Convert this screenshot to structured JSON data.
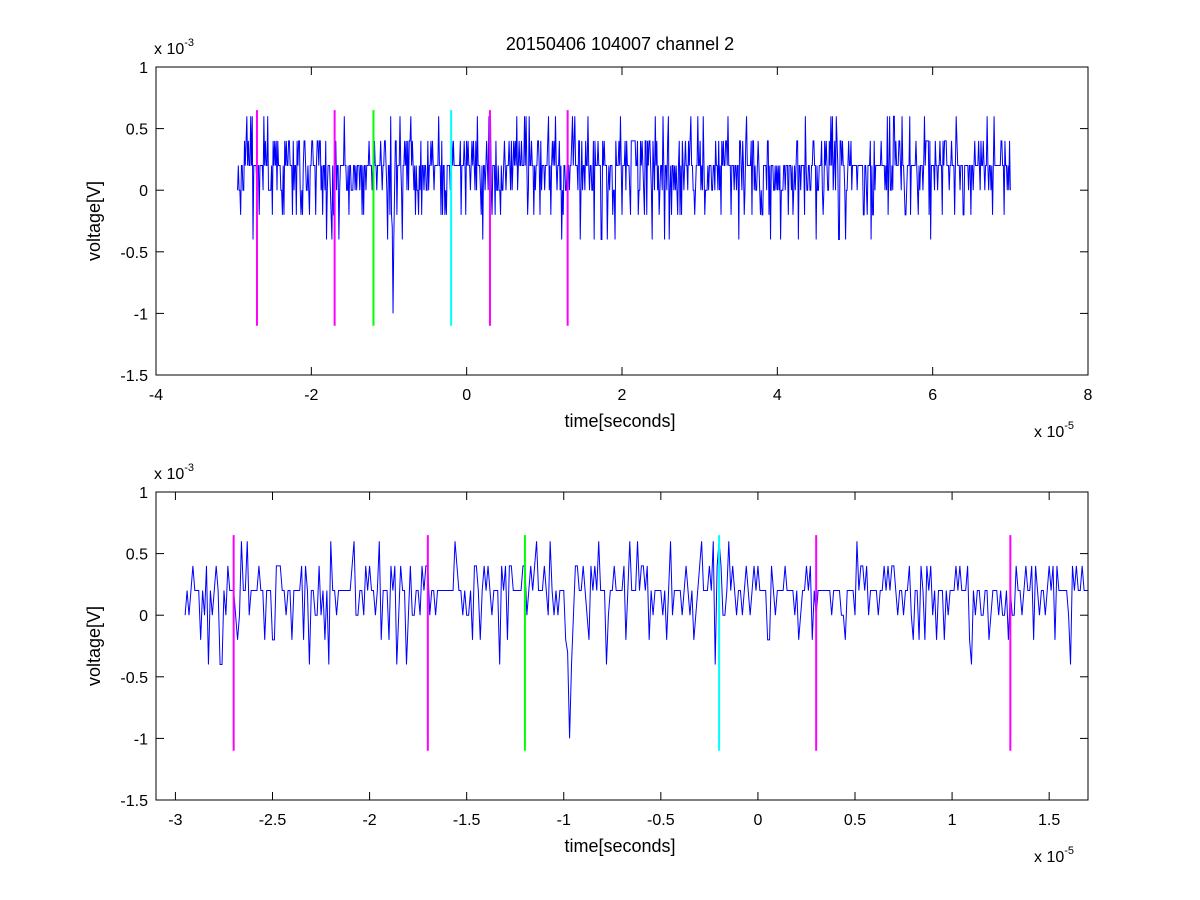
{
  "title": "20150406 104007 channel 2",
  "colors": {
    "signal": "#0000ff",
    "magenta": "#ff00ff",
    "green": "#00ff00",
    "cyan": "#00ffff",
    "axis": "#000000",
    "background": "#ffffff"
  },
  "chart_data": [
    {
      "type": "line",
      "xlabel": "time[seconds]",
      "ylabel": "voltage[V]",
      "x_multiplier_label": "x 10",
      "x_multiplier_exp": "-5",
      "y_multiplier_label": "x 10",
      "y_multiplier_exp": "-3",
      "xlim": [
        -4,
        8
      ],
      "ylim": [
        -1.5,
        1
      ],
      "xticks": [
        -4,
        -2,
        0,
        2,
        4,
        6,
        8
      ],
      "xtick_labels": [
        "-4",
        "-2",
        "0",
        "2",
        "4",
        "6",
        "8"
      ],
      "yticks": [
        -1.5,
        -1,
        -0.5,
        0,
        0.5,
        1
      ],
      "ytick_labels": [
        "-1.5",
        "-1",
        "-0.5",
        "0",
        "0.5",
        "1"
      ],
      "grid": false,
      "signal": {
        "x_start": -2.95,
        "x_end": 7.0,
        "sample_count": 1000,
        "quantization_step": 0.2,
        "baseline": 0.2,
        "min_value": -1.0,
        "min_at_x": -0.95,
        "max_value": 0.6
      },
      "markers": [
        {
          "x": -2.7,
          "color": "magenta",
          "y_top": 0.65,
          "y_bottom": -1.1
        },
        {
          "x": -1.7,
          "color": "magenta",
          "y_top": 0.65,
          "y_bottom": -1.1
        },
        {
          "x": -1.2,
          "color": "green",
          "y_top": 0.65,
          "y_bottom": -1.1
        },
        {
          "x": -0.2,
          "color": "cyan",
          "y_top": 0.65,
          "y_bottom": -1.1
        },
        {
          "x": 0.3,
          "color": "magenta",
          "y_top": 0.65,
          "y_bottom": -1.1
        },
        {
          "x": 1.3,
          "color": "magenta",
          "y_top": 0.65,
          "y_bottom": -1.1
        }
      ]
    },
    {
      "type": "line",
      "xlabel": "time[seconds]",
      "ylabel": "voltage[V]",
      "x_multiplier_label": "x 10",
      "x_multiplier_exp": "-5",
      "y_multiplier_label": "x 10",
      "y_multiplier_exp": "-3",
      "xlim": [
        -3.1,
        1.7
      ],
      "ylim": [
        -1.5,
        1
      ],
      "xticks": [
        -3,
        -2.5,
        -2,
        -1.5,
        -1,
        -0.5,
        0,
        0.5,
        1,
        1.5
      ],
      "xtick_labels": [
        "-3",
        "-2.5",
        "-2",
        "-1.5",
        "-1",
        "-0.5",
        "0",
        "0.5",
        "1",
        "1.5"
      ],
      "yticks": [
        -1.5,
        -1,
        -0.5,
        0,
        0.5,
        1
      ],
      "ytick_labels": [
        "-1.5",
        "-1",
        "-0.5",
        "0",
        "0.5",
        "1"
      ],
      "grid": false,
      "signal": {
        "x_start": -2.95,
        "x_end": 1.7,
        "sample_count": 466,
        "quantization_step": 0.2,
        "baseline": 0.2,
        "min_value": -1.0,
        "min_at_x": -0.97,
        "max_value": 0.6
      },
      "markers": [
        {
          "x": -2.7,
          "color": "magenta",
          "y_top": 0.65,
          "y_bottom": -1.1
        },
        {
          "x": -1.7,
          "color": "magenta",
          "y_top": 0.65,
          "y_bottom": -1.1
        },
        {
          "x": -1.2,
          "color": "green",
          "y_top": 0.65,
          "y_bottom": -1.1
        },
        {
          "x": -0.2,
          "color": "cyan",
          "y_top": 0.65,
          "y_bottom": -1.1
        },
        {
          "x": 0.3,
          "color": "magenta",
          "y_top": 0.65,
          "y_bottom": -1.1
        },
        {
          "x": 1.3,
          "color": "magenta",
          "y_top": 0.65,
          "y_bottom": -1.1
        }
      ]
    }
  ]
}
